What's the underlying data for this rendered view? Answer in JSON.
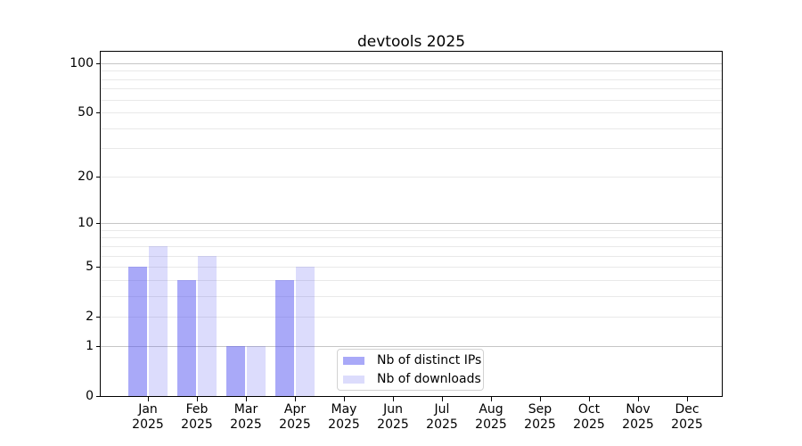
{
  "title": "devtools 2025",
  "chart_data": {
    "type": "bar",
    "title": "devtools 2025",
    "categories": [
      "Jan 2025",
      "Feb 2025",
      "Mar 2025",
      "Apr 2025",
      "May 2025",
      "Jun 2025",
      "Jul 2025",
      "Aug 2025",
      "Sep 2025",
      "Oct 2025",
      "Nov 2025",
      "Dec 2025"
    ],
    "x_tick_top": [
      "Jan",
      "Feb",
      "Mar",
      "Apr",
      "May",
      "Jun",
      "Jul",
      "Aug",
      "Sep",
      "Oct",
      "Nov",
      "Dec"
    ],
    "x_tick_bottom": "2025",
    "series": [
      {
        "name": "Nb of distinct IPs",
        "values": [
          5,
          4,
          1,
          4,
          0,
          0,
          0,
          0,
          0,
          0,
          0,
          0
        ],
        "color": "rgba(80,80,240,0.49)"
      },
      {
        "name": "Nb of downloads",
        "values": [
          7,
          6,
          1,
          5,
          0,
          0,
          0,
          0,
          0,
          0,
          0,
          0
        ],
        "color": "rgba(80,80,240,0.20)"
      }
    ],
    "xlabel": "",
    "ylabel": "",
    "yscale": "log1p",
    "y_ticks": [
      0,
      1,
      2,
      5,
      10,
      20,
      50,
      100
    ],
    "y_minor_gridlines": [
      3,
      4,
      6,
      7,
      8,
      9,
      30,
      40,
      60,
      70,
      80,
      90
    ],
    "ylim": [
      0,
      117
    ],
    "grid": true,
    "legend_position": "lower-center"
  },
  "colors": {
    "grid_major": "#c6c6c6",
    "grid_minor": "#e9e9e9",
    "spine": "#000000",
    "background": "#ffffff",
    "tick_label": "#000000"
  }
}
